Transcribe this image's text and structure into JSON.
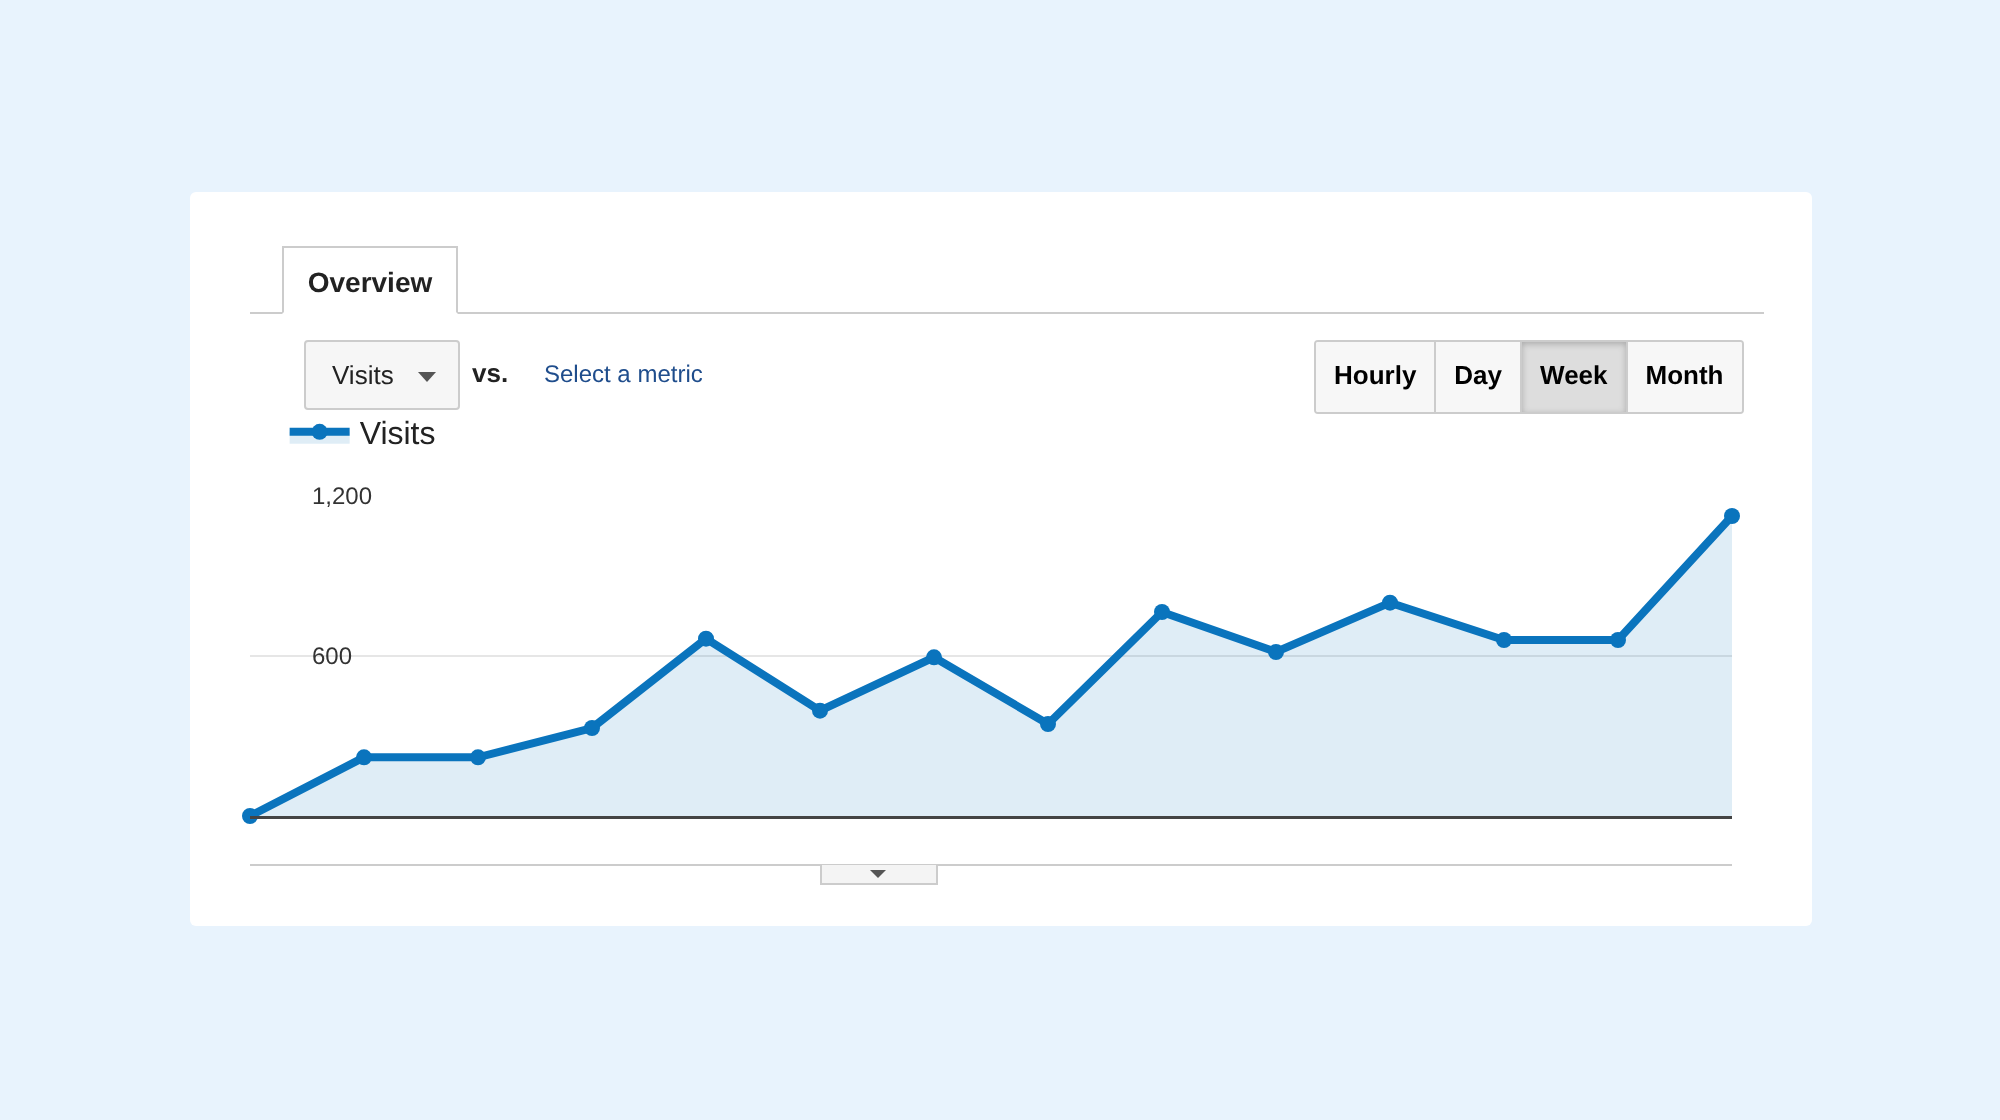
{
  "chart_data": {
    "type": "area",
    "categories": [
      null,
      null,
      null,
      null,
      null,
      null,
      null,
      null,
      null,
      null,
      null,
      null,
      null,
      null
    ],
    "series": [
      {
        "name": "Visits",
        "color": "#0a74bd",
        "values": [
          0,
          220,
          220,
          330,
          665,
          395,
          595,
          345,
          765,
          615,
          800,
          660,
          660,
          1125
        ]
      }
    ],
    "ylim": [
      0,
      1200
    ],
    "yticks": [
      {
        "value": 0,
        "label": null
      },
      600,
      {
        "value": 1200,
        "label": "1,200"
      }
    ],
    "grid": "y",
    "legend": "top left",
    "marker": "circle",
    "line_style": "solid",
    "tick_labels": "y",
    "annotations": [
      "Overview",
      "Visits",
      "vs.",
      "Select a metric",
      "Hourly",
      "Day",
      "Week",
      "Month"
    ]
  }
}
